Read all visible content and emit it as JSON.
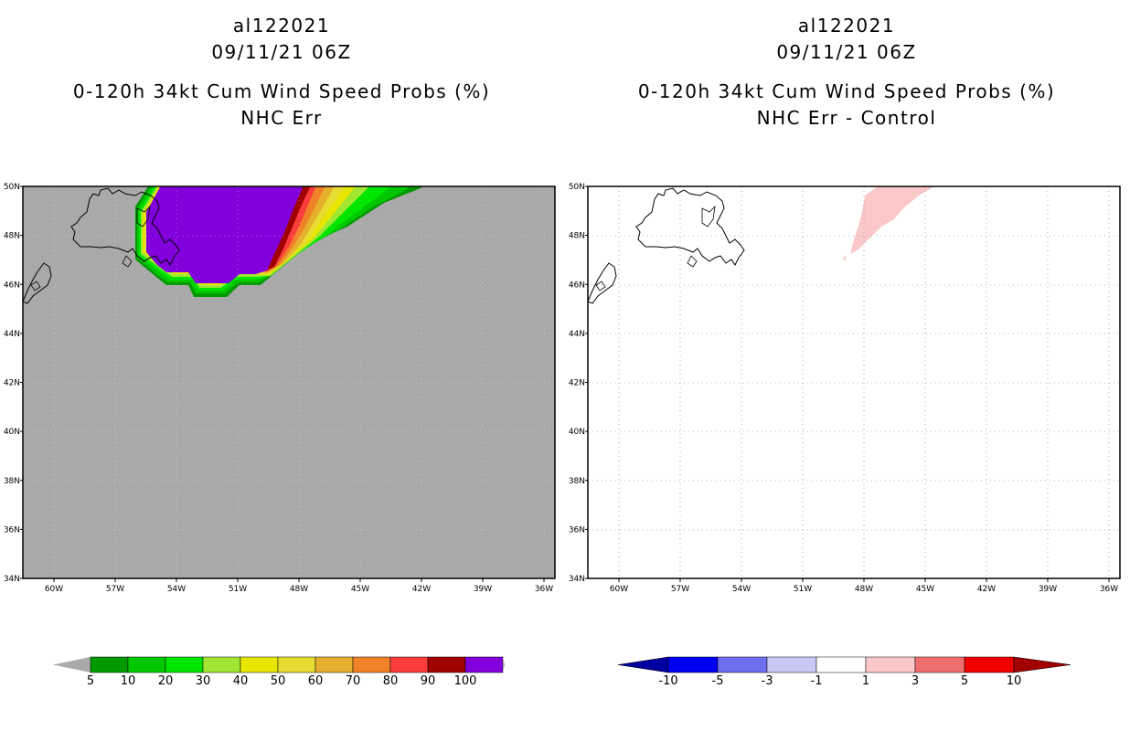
{
  "left_panel": {
    "storm_id": "al122021",
    "datetime": "09/11/21 06Z",
    "product": "0-120h 34kt Cum Wind Speed Probs (%)",
    "subtitle": "NHC Err",
    "background_color": "#a9a9a9"
  },
  "right_panel": {
    "storm_id": "al122021",
    "datetime": "09/11/21 06Z",
    "product": "0-120h 34kt Cum Wind Speed Probs (%)",
    "subtitle": "NHC Err - Control",
    "background_color": "#ffffff"
  },
  "map_axes": {
    "lon_labels": [
      "60W",
      "57W",
      "54W",
      "51W",
      "48W",
      "45W",
      "42W",
      "39W",
      "36W"
    ],
    "lat_labels": [
      "50N",
      "48N",
      "46N",
      "44N",
      "42N",
      "40N",
      "38N",
      "36N",
      "34N"
    ]
  },
  "colorbar_left": {
    "labels": [
      "5",
      "10",
      "20",
      "30",
      "40",
      "50",
      "60",
      "70",
      "80",
      "90",
      "100"
    ],
    "colors": [
      "#009a00",
      "#00c800",
      "#00e600",
      "#a0e632",
      "#e6e600",
      "#e6dc32",
      "#e6af2d",
      "#f08228",
      "#fa3c3c",
      "#a00000",
      "#8200dc"
    ],
    "extend_color": "#a9a9a9"
  },
  "colorbar_right": {
    "labels": [
      "-10",
      "-5",
      "-3",
      "-1",
      "1",
      "3",
      "5",
      "10"
    ],
    "colors": [
      "#0000a0",
      "#0000f0",
      "#6e6ef0",
      "#c8c8f5",
      "#ffffff",
      "#fac8c8",
      "#f06e6e",
      "#f00000",
      "#a00000"
    ]
  }
}
